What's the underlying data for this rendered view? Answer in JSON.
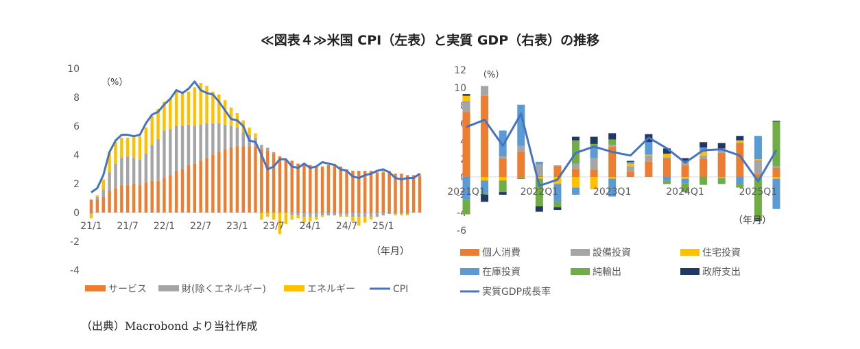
{
  "figure": {
    "title": "≪図表４≫米国 CPI（左表）と実質 GDP（右表）の推移",
    "source": "（出典）Macrobond より当社作成"
  },
  "chart_data": [
    {
      "type": "bar",
      "stacked": true,
      "unit_label": "（%）",
      "x_unit_label": "（年月）",
      "x_tick_labels": [
        "21/1",
        "21/7",
        "22/1",
        "22/7",
        "23/1",
        "23/7",
        "24/1",
        "24/7",
        "25/1"
      ],
      "ylim": [
        -4,
        10
      ],
      "y_ticks": [
        10,
        8,
        6,
        4,
        2,
        0,
        -2,
        -4
      ],
      "grid": false,
      "legend_position": "bottom",
      "colors": {
        "services": "#ed7d31",
        "core_goods": "#a5a5a5",
        "energy": "#ffc000",
        "cpi": "#4472c4"
      },
      "legend": [
        {
          "key": "services",
          "label": "サービス",
          "kind": "bar"
        },
        {
          "key": "core_goods",
          "label": "財(除くエネルギー)",
          "kind": "bar"
        },
        {
          "key": "energy",
          "label": "エネルギー",
          "kind": "bar"
        },
        {
          "key": "cpi",
          "label": "CPI",
          "kind": "line"
        }
      ],
      "services": [
        0.9,
        0.9,
        1.1,
        1.5,
        1.7,
        1.9,
        1.9,
        2.0,
        1.9,
        2.1,
        2.2,
        2.2,
        2.4,
        2.6,
        2.9,
        3.0,
        3.3,
        3.4,
        3.6,
        3.8,
        4.0,
        4.2,
        4.4,
        4.5,
        4.6,
        4.6,
        4.6,
        4.6,
        4.4,
        4.3,
        4.1,
        3.9,
        3.7,
        3.6,
        3.4,
        3.4,
        3.3,
        3.2,
        3.2,
        3.3,
        3.2,
        3.2,
        3.0,
        2.9,
        2.9,
        2.9,
        2.9,
        2.8,
        2.8,
        2.8,
        2.7,
        2.7,
        2.6,
        2.6,
        2.5
      ],
      "core_goods": [
        -0.1,
        0.2,
        0.5,
        1.3,
        1.7,
        1.9,
        2.0,
        1.8,
        1.8,
        2.0,
        2.5,
        2.9,
        3.3,
        3.2,
        3.1,
        3.0,
        2.8,
        2.6,
        2.5,
        2.4,
        2.2,
        2.0,
        1.7,
        1.5,
        1.3,
        1.0,
        0.8,
        0.6,
        0.3,
        0.2,
        0.1,
        0.0,
        0.0,
        -0.2,
        -0.2,
        -0.3,
        -0.3,
        -0.3,
        -0.2,
        -0.2,
        -0.2,
        -0.2,
        -0.2,
        -0.3,
        -0.3,
        -0.3,
        -0.3,
        -0.3,
        -0.2,
        -0.1,
        -0.1,
        -0.1,
        -0.1,
        0.0,
        0.1
      ],
      "energy": [
        -0.3,
        0.1,
        0.7,
        1.4,
        1.5,
        1.4,
        1.3,
        1.5,
        1.6,
        1.8,
        2.0,
        2.1,
        2.0,
        2.1,
        2.4,
        2.4,
        2.3,
        2.7,
        2.9,
        2.6,
        2.2,
        2.0,
        1.7,
        1.3,
        1.0,
        0.8,
        0.5,
        0.3,
        -0.5,
        -0.3,
        -0.5,
        -1.5,
        -0.8,
        -0.3,
        -0.2,
        -0.4,
        -0.3,
        -0.2,
        -0.1,
        0.0,
        0.2,
        -0.1,
        -0.1,
        -0.3,
        -0.6,
        -0.4,
        -0.2,
        0.0,
        0.1,
        0.1,
        -0.1,
        -0.1,
        -0.1,
        0.0,
        0.1
      ],
      "cpi": [
        1.4,
        1.7,
        2.6,
        4.2,
        5.0,
        5.4,
        5.4,
        5.3,
        5.4,
        6.2,
        6.8,
        7.0,
        7.5,
        7.9,
        8.5,
        8.3,
        8.6,
        9.1,
        8.5,
        8.3,
        8.2,
        7.7,
        7.1,
        6.5,
        6.4,
        6.0,
        5.0,
        4.9,
        4.0,
        3.0,
        3.2,
        3.7,
        3.7,
        3.2,
        3.1,
        3.4,
        3.1,
        3.2,
        3.5,
        3.4,
        3.3,
        3.0,
        2.9,
        2.5,
        2.4,
        2.6,
        2.7,
        2.9,
        3.0,
        2.8,
        2.4,
        2.3,
        2.4,
        2.4,
        2.7
      ]
    },
    {
      "type": "bar",
      "stacked": true,
      "unit_label": "（%）",
      "x_unit_label": "（年月）",
      "x_tick_labels": [
        "2021Q1",
        "2022Q1",
        "2023Q1",
        "2024Q1",
        "2025Q1"
      ],
      "ylim": [
        -6,
        12
      ],
      "y_ticks": [
        12,
        10,
        8,
        6,
        4,
        2,
        0,
        -2,
        -4,
        -6
      ],
      "grid": false,
      "legend_position": "bottom",
      "colors": {
        "consumption": "#ed7d31",
        "equipment": "#a5a5a5",
        "residential": "#ffc000",
        "inventory": "#5b9bd5",
        "net_exports": "#70ad47",
        "government": "#203864",
        "gdp": "#4472c4"
      },
      "legend": [
        {
          "key": "consumption",
          "label": "個人消費",
          "kind": "bar"
        },
        {
          "key": "equipment",
          "label": "設備投資",
          "kind": "bar"
        },
        {
          "key": "residential",
          "label": "住宅投資",
          "kind": "bar"
        },
        {
          "key": "inventory",
          "label": "在庫投資",
          "kind": "bar"
        },
        {
          "key": "net_exports",
          "label": "純輸出",
          "kind": "bar"
        },
        {
          "key": "government",
          "label": "政府支出",
          "kind": "bar"
        },
        {
          "key": "gdp",
          "label": "実質GDP成長率",
          "kind": "line"
        }
      ],
      "consumption": [
        7.3,
        9.1,
        2.1,
        2.8,
        0.1,
        1.2,
        0.9,
        0.8,
        3.4,
        0.6,
        1.7,
        2.1,
        1.3,
        2.0,
        2.7,
        3.8,
        0.3,
        1.0
      ],
      "equipment": [
        1.2,
        1.1,
        0.2,
        0.7,
        1.3,
        0.1,
        0.6,
        1.3,
        0.2,
        0.6,
        0.7,
        0.1,
        0.5,
        0.4,
        0.5,
        0.1,
        1.6,
        0.2
      ],
      "residential": [
        0.6,
        -0.4,
        -0.4,
        -0.1,
        -0.2,
        -0.8,
        -1.2,
        -1.4,
        -0.2,
        0.3,
        0.1,
        0.4,
        -0.2,
        0.4,
        -0.1,
        0.2,
        0.1,
        -0.2
      ],
      "inventory": [
        -2.6,
        -1.4,
        2.9,
        4.6,
        0.3,
        -2.0,
        -0.8,
        1.3,
        -2.0,
        0.2,
        1.4,
        -0.4,
        -0.5,
        0.5,
        -0.1,
        -0.8,
        2.6,
        -3.4
      ],
      "net_exports": [
        -1.6,
        -0.2,
        -1.3,
        0.0,
        -3.1,
        -0.6,
        2.6,
        0.3,
        0.6,
        0.0,
        0.0,
        -0.4,
        -1.0,
        -0.9,
        -0.6,
        -0.4,
        -4.8,
        5.0
      ],
      "government": [
        0.2,
        -0.8,
        -0.3,
        -0.1,
        -0.6,
        -0.3,
        0.4,
        0.8,
        0.7,
        0.1,
        0.9,
        0.6,
        0.3,
        0.6,
        0.6,
        0.5,
        -0.1,
        0.1
      ],
      "gdp": [
        5.6,
        6.4,
        3.5,
        7.1,
        -1.0,
        -0.3,
        2.7,
        3.4,
        2.8,
        2.4,
        4.4,
        3.2,
        1.6,
        3.0,
        3.1,
        2.4,
        -0.5,
        3.0
      ]
    }
  ]
}
